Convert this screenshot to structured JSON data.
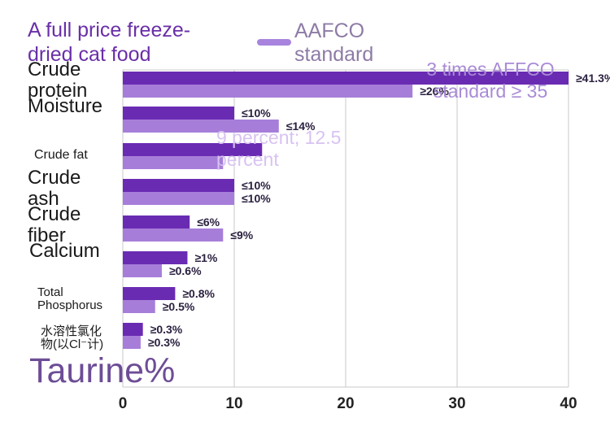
{
  "legend": {
    "product_label": "A full price freeze-dried cat food",
    "standard_label": "AAFCO standard"
  },
  "annotations": {
    "protein_note": "3 times AFFCO standard ≥ 35",
    "moisture_note": "9 percent; 12.5 percent"
  },
  "taurine_label": "Taurine%",
  "chart_data": {
    "type": "bar",
    "orientation": "horizontal",
    "categories": [
      "Crude protein",
      "Moisture",
      "Crude fat",
      "Crude ash",
      "Crude fiber",
      "Calcium",
      "Total Phosphorus",
      "水溶性氯化物(以Cl⁻计)"
    ],
    "category_labels": [
      "Crude protein",
      "Moisture",
      "Crude fat",
      "Crude ash",
      "Crude fiber",
      "Calcium",
      "Total Phosphorus",
      "水溶性氯化物(以Cl⁻计)"
    ],
    "series": [
      {
        "name": "A full price freeze-dried cat food",
        "values": [
          40,
          10,
          12.5,
          10,
          6,
          5.8,
          4.7,
          1.8
        ],
        "labels": [
          "≥41.3%",
          "≤10%",
          "",
          "≤10%",
          "≤6%",
          "≥1%",
          "≥0.8%",
          "≥0.3%"
        ]
      },
      {
        "name": "AAFCO standard",
        "values": [
          26,
          14,
          9,
          10,
          9,
          3.5,
          2.9,
          1.6
        ],
        "labels": [
          "≥26%",
          "≤14%",
          "",
          "≤10%",
          "≤9%",
          "≥0.6%",
          "≥0.5%",
          "≥0.3%"
        ]
      }
    ],
    "xlim": [
      0,
      40
    ],
    "xticks": [
      "0",
      "10",
      "20",
      "30",
      "40"
    ],
    "grid": true,
    "colors": {
      "product": "#6a2bb3",
      "standard": "#a67ed9",
      "grid": "#c9c9c9",
      "label": "#2b2140"
    }
  }
}
